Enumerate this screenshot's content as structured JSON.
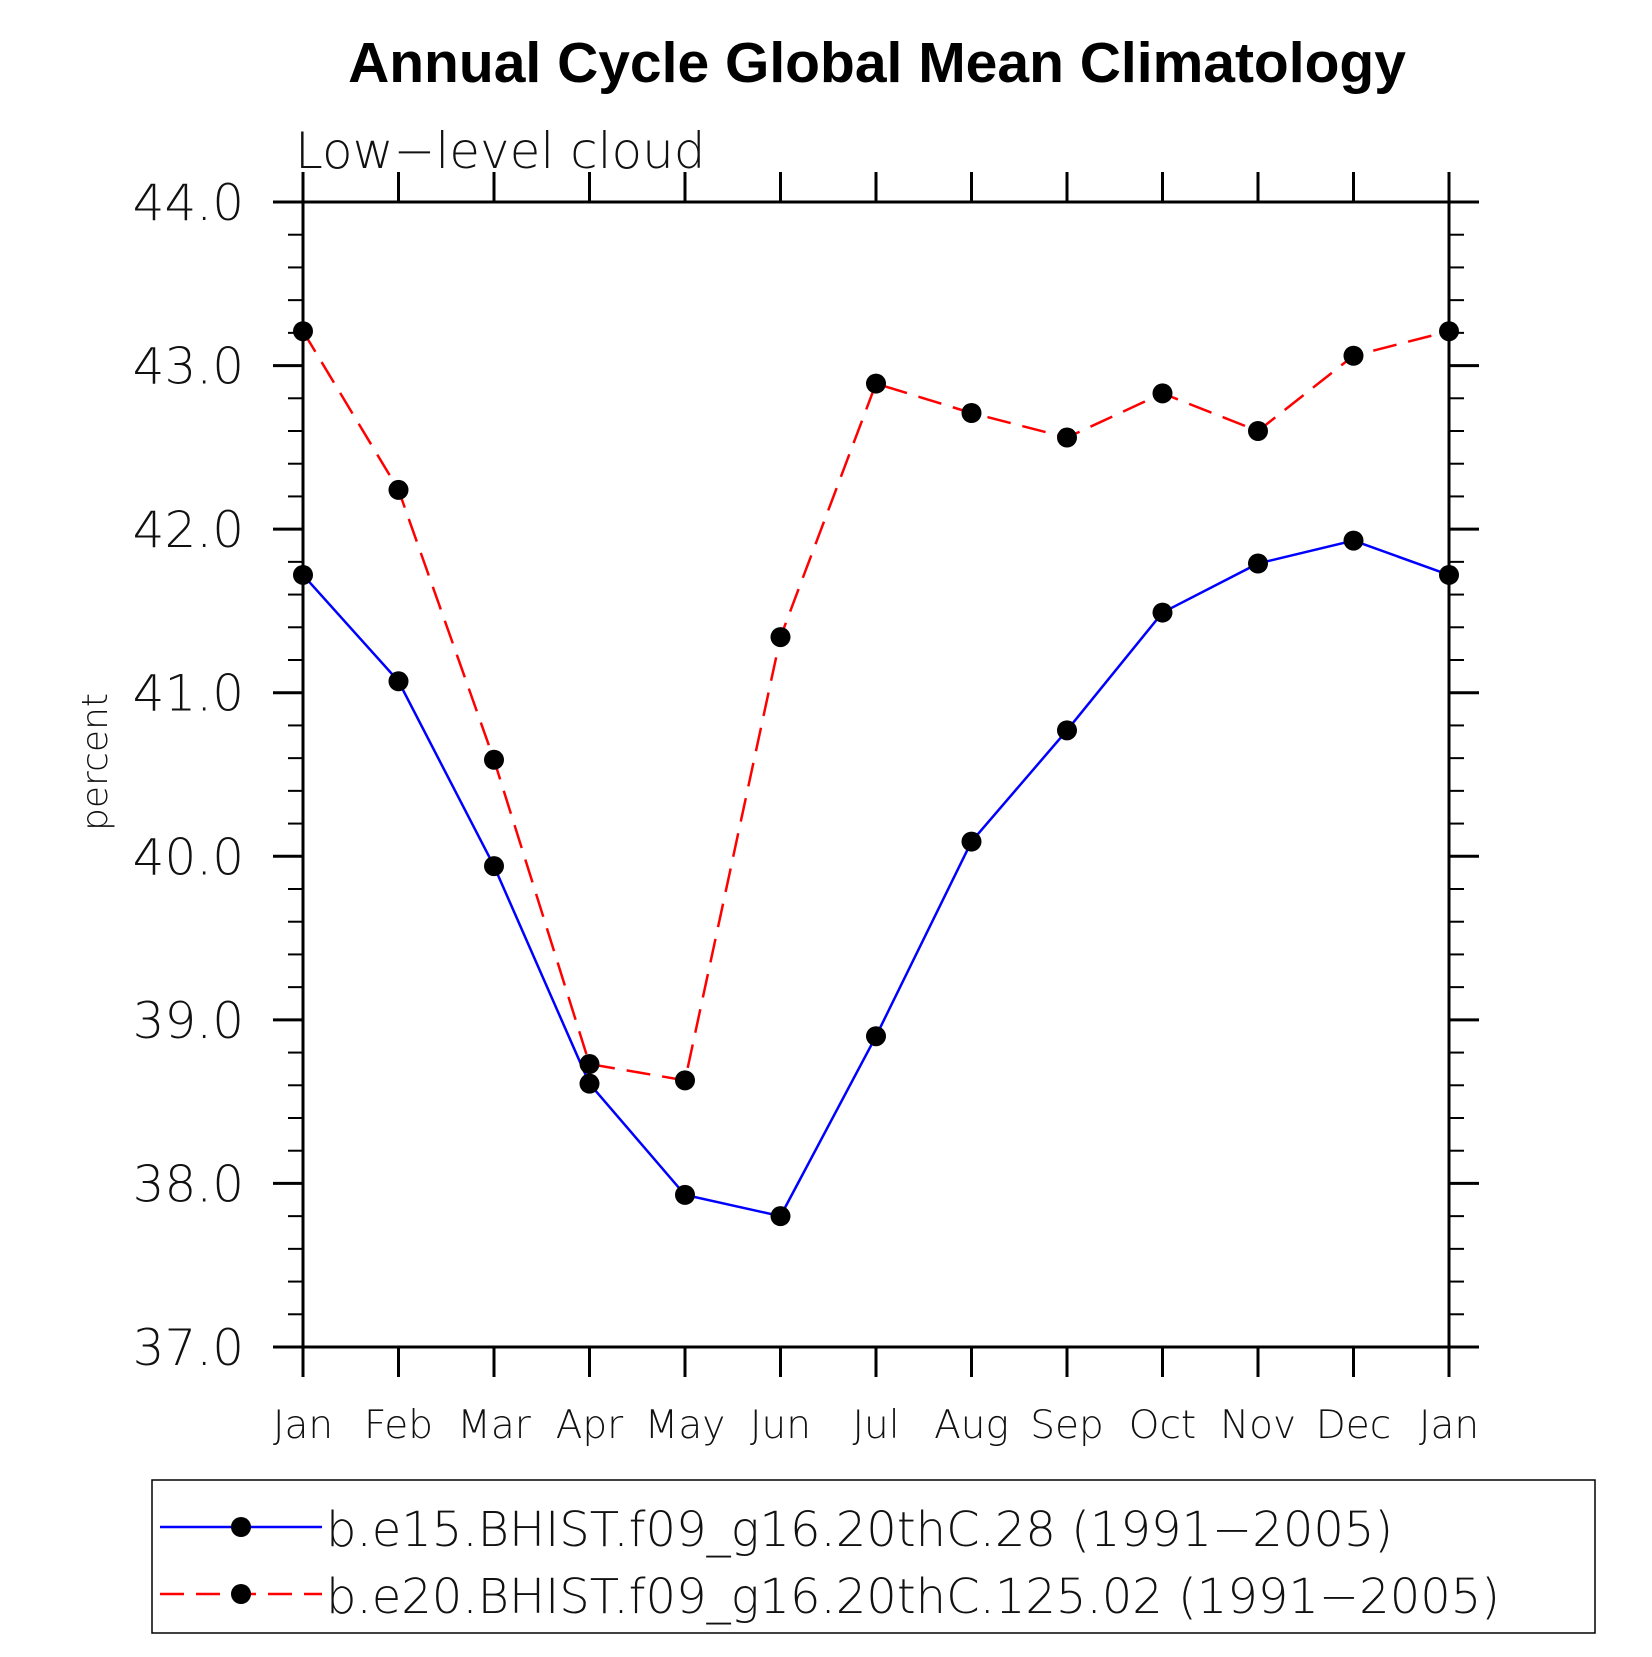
{
  "chart_data": {
    "type": "line",
    "title": "Annual Cycle Global Mean Climatology",
    "subtitle": "Low−level cloud",
    "xlabel": "",
    "ylabel": "percent",
    "categories": [
      "Jan",
      "Feb",
      "Mar",
      "Apr",
      "May",
      "Jun",
      "Jul",
      "Aug",
      "Sep",
      "Oct",
      "Nov",
      "Dec",
      "Jan"
    ],
    "ylim": [
      37.0,
      44.0
    ],
    "y_ticks": [
      "37.0",
      "38.0",
      "39.0",
      "40.0",
      "41.0",
      "42.0",
      "43.0",
      "44.0"
    ],
    "y_minor_step": 0.2,
    "grid": false,
    "legend_position": "bottom",
    "series": [
      {
        "name": "b.e15.BHIST.f09_g16.20thC.28 (1991−2005)",
        "color": "#0000ff",
        "dash": "solid",
        "marker": "filled-circle",
        "values": [
          41.72,
          41.07,
          39.94,
          38.61,
          37.93,
          37.8,
          38.9,
          40.09,
          40.77,
          41.49,
          41.79,
          41.93,
          41.72
        ]
      },
      {
        "name": "b.e20.BHIST.f09_g16.20thC.125.02 (1991−2005)",
        "color": "#ff0000",
        "dash": "dashed",
        "marker": "filled-circle",
        "values": [
          43.21,
          42.24,
          40.59,
          38.73,
          38.63,
          41.34,
          42.89,
          42.71,
          42.56,
          42.83,
          42.6,
          43.06,
          43.21
        ]
      }
    ]
  }
}
